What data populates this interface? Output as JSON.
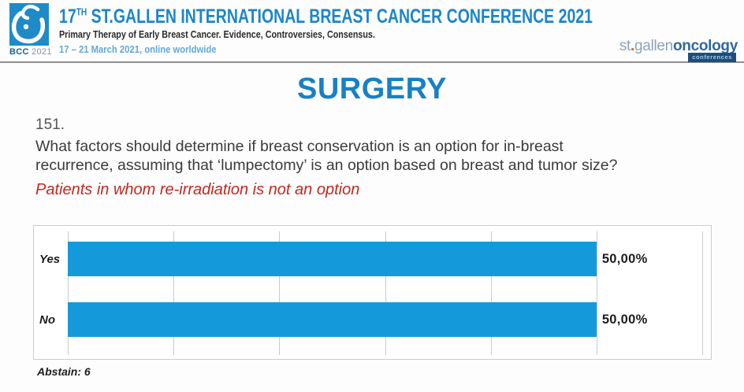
{
  "header": {
    "logo": {
      "bcc": "BCC",
      "year": "2021",
      "square_color": "#1e8bc8"
    },
    "title": {
      "num": "17",
      "sup": "TH",
      "rest": " ST.GALLEN INTERNATIONAL BREAST CANCER CONFERENCE 2021",
      "color": "#1c86c8"
    },
    "subtitle": "Primary Therapy of Early Breast Cancer. Evidence, Controversies, Consensus.",
    "dates": "17 – 21 March 2021, online worldwide",
    "right_logo": {
      "st": "st",
      "dot": ".",
      "gallen": "gallen",
      "oncology": "oncology",
      "badge": "conferences"
    }
  },
  "section_title": "SURGERY",
  "question": {
    "number": "151.",
    "lines": [
      "What factors should determine if breast conservation is an option for in-breast",
      "recurrence, assuming that ‘lumpectomy’ is an option based on breast and tumor size?"
    ],
    "note": "Patients in whom re-irradiation is not an option",
    "note_color": "#c2281f"
  },
  "chart_data": {
    "type": "bar",
    "orientation": "horizontal",
    "categories": [
      "Yes",
      "No"
    ],
    "values": [
      50.0,
      50.0
    ],
    "value_labels": [
      "50,00%",
      "50,00%"
    ],
    "xlim": [
      0,
      60
    ],
    "gridline_step": 10,
    "grid": true,
    "legend": false,
    "bar_color": "#149adb",
    "title": "",
    "xlabel": "",
    "ylabel": ""
  },
  "footer": {
    "abstain": "Abstain: 6"
  }
}
